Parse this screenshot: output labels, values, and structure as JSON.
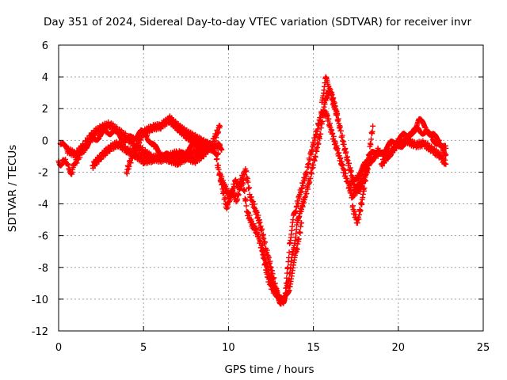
{
  "chart_data": {
    "type": "scatter",
    "title": "Day 351 of 2024, Sidereal Day-to-day VTEC variation (SDTVAR) for receiver invr",
    "xlabel": "GPS time / hours",
    "ylabel": "SDTVAR / TECUs",
    "xlim": [
      0,
      25
    ],
    "ylim": [
      -12,
      6
    ],
    "xticks": [
      "0",
      "5",
      "10",
      "15",
      "20",
      "25"
    ],
    "yticks": [
      "6",
      "4",
      "2",
      "0",
      "-2",
      "-4",
      "-6",
      "-8",
      "-10",
      "-12"
    ],
    "grid": true,
    "marker": "+",
    "series": [
      {
        "name": "SDTVAR",
        "color": "#ff0000",
        "tracks": [
          {
            "x": [
              0.0,
              0.2,
              0.4,
              0.6,
              0.8,
              1.0,
              1.3,
              1.6,
              2.0,
              2.4,
              2.8,
              3.2,
              3.6,
              4.0,
              4.4,
              4.8,
              5.2,
              5.6,
              6.0,
              6.4,
              6.8,
              7.2,
              7.6,
              8.0,
              8.4,
              8.8,
              9.2,
              9.6
            ],
            "y": [
              -1.3,
              -1.5,
              -1.2,
              -1.8,
              -2.0,
              -1.4,
              -0.8,
              -0.4,
              0.0,
              0.3,
              0.5,
              0.6,
              0.3,
              0.0,
              0.2,
              0.5,
              0.3,
              -0.4,
              -0.8,
              -1.0,
              -1.1,
              -0.9,
              -0.6,
              -0.3,
              -0.4,
              -0.2,
              -0.4,
              -0.6
            ]
          },
          {
            "x": [
              0.1,
              0.5,
              1.0,
              1.5,
              2.0,
              2.5,
              3.0,
              3.5,
              4.0,
              4.5,
              5.0,
              5.5,
              6.0,
              6.5,
              7.0,
              7.5,
              8.0,
              8.5,
              9.0,
              9.5
            ],
            "y": [
              -0.2,
              -0.6,
              -0.9,
              -0.3,
              0.4,
              0.8,
              1.0,
              0.6,
              0.2,
              -0.3,
              -0.7,
              -1.1,
              -1.2,
              -1.0,
              -0.8,
              -1.0,
              -1.3,
              -0.9,
              -0.3,
              0.9
            ]
          },
          {
            "x": [
              2.0,
              2.5,
              3.0,
              3.5,
              4.0,
              4.5,
              5.0,
              5.5,
              6.0,
              6.5,
              7.0,
              7.5,
              8.0,
              8.5,
              9.0
            ],
            "y": [
              -1.6,
              -1.0,
              -0.5,
              -0.2,
              -0.6,
              -0.9,
              -1.3,
              -1.2,
              -1.0,
              -1.2,
              -1.4,
              -1.1,
              -0.7,
              -0.5,
              -0.3
            ]
          },
          {
            "x": [
              4.0,
              4.5,
              5.0,
              5.5,
              6.0,
              6.5,
              7.0,
              7.5,
              8.0,
              8.5,
              9.0,
              9.4
            ],
            "y": [
              -2.0,
              -0.5,
              0.5,
              0.8,
              0.9,
              1.3,
              0.8,
              0.3,
              -0.1,
              -0.3,
              -0.5,
              -0.8
            ]
          },
          {
            "x": [
              6.5,
              7.0,
              7.5,
              8.0,
              8.5,
              9.0,
              9.5
            ],
            "y": [
              1.4,
              0.9,
              0.5,
              0.2,
              -0.1,
              -0.4,
              -0.3
            ]
          },
          {
            "x": [
              9.3,
              9.6,
              9.9,
              10.2,
              10.5,
              10.8,
              11.1,
              11.4,
              11.7,
              12.0,
              12.3,
              12.6,
              12.9,
              13.1,
              13.3,
              13.5,
              13.6,
              13.8,
              14.0,
              14.3,
              14.6,
              14.9,
              15.2,
              15.5,
              15.8,
              16.1,
              16.4,
              16.7,
              17.0,
              17.3,
              17.6,
              17.9,
              18.2
            ],
            "y": [
              -1.2,
              -2.8,
              -4.3,
              -3.2,
              -3.8,
              -2.2,
              -4.5,
              -5.3,
              -5.8,
              -7.0,
              -8.6,
              -9.4,
              -9.7,
              -10.3,
              -10.0,
              -8.0,
              -6.5,
              -5.0,
              -4.2,
              -3.0,
              -2.0,
              -0.6,
              0.6,
              1.8,
              1.6,
              0.4,
              -0.6,
              -1.6,
              -2.6,
              -3.6,
              -2.8,
              -2.5,
              -1.8
            ]
          },
          {
            "x": [
              9.5,
              9.8,
              10.1,
              10.4,
              10.7,
              11.0,
              11.3,
              11.6,
              11.9,
              12.2,
              12.5,
              12.8,
              13.0,
              13.2,
              13.4,
              13.6,
              13.8,
              14.0,
              14.2,
              14.5,
              14.8,
              15.1,
              15.4,
              15.7,
              16.0,
              16.3,
              16.6,
              16.9,
              17.2,
              17.5,
              17.8,
              18.1,
              18.4
            ],
            "y": [
              -2.2,
              -3.0,
              -3.6,
              -2.6,
              -3.0,
              -1.8,
              -3.6,
              -4.4,
              -5.4,
              -6.8,
              -8.0,
              -9.4,
              -9.9,
              -10.2,
              -9.6,
              -8.4,
              -7.0,
              -5.6,
              -4.6,
              -3.6,
              -2.4,
              -1.0,
              0.4,
              2.6,
              3.2,
              2.0,
              0.6,
              -0.8,
              -2.0,
              -3.2,
              -3.0,
              -2.0,
              -1.0
            ]
          },
          {
            "x": [
              12.0,
              12.4,
              12.8,
              13.2,
              13.6,
              14.0,
              14.3
            ],
            "y": [
              -6.6,
              -8.6,
              -9.6,
              -10.2,
              -9.2,
              -7.0,
              -5.2
            ]
          },
          {
            "x": [
              15.5,
              15.7,
              15.9,
              16.1,
              16.4
            ],
            "y": [
              2.4,
              3.9,
              3.4,
              2.6,
              1.6
            ]
          },
          {
            "x": [
              17.3,
              17.6,
              17.9,
              18.2,
              18.5
            ],
            "y": [
              -4.2,
              -5.2,
              -3.6,
              -1.5,
              0.9
            ]
          },
          {
            "x": [
              17.2,
              17.6,
              18.0,
              18.4,
              18.8,
              19.2,
              19.6,
              20.0,
              20.4,
              20.8,
              21.2,
              21.6,
              22.0,
              22.4,
              22.8
            ],
            "y": [
              -3.0,
              -2.2,
              -1.6,
              -1.2,
              -1.0,
              -0.6,
              -0.2,
              0.1,
              0.3,
              0.5,
              0.7,
              0.5,
              0.2,
              -0.3,
              -0.9
            ]
          },
          {
            "x": [
              18.0,
              18.4,
              18.8,
              19.2,
              19.6,
              20.0,
              20.4,
              20.8,
              21.2,
              21.6,
              22.0,
              22.4,
              22.8
            ],
            "y": [
              -1.8,
              -0.9,
              -0.5,
              -1.2,
              -0.7,
              -0.4,
              -0.1,
              0.4,
              1.3,
              0.8,
              0.3,
              0.0,
              -0.5
            ]
          },
          {
            "x": [
              19.0,
              19.5,
              20.0,
              20.5,
              21.0,
              21.5,
              22.0,
              22.5,
              22.8
            ],
            "y": [
              -1.5,
              -0.8,
              -0.2,
              0.0,
              -0.3,
              -0.2,
              -0.6,
              -1.0,
              -1.5
            ]
          }
        ]
      }
    ]
  }
}
